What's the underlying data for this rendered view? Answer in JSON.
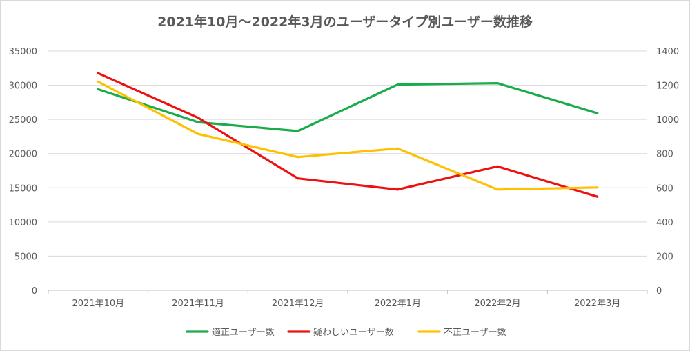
{
  "chart_data": {
    "type": "line",
    "title": "2021年10月～2022年3月のユーザータイプ別ユーザー数推移",
    "categories": [
      "2021年10月",
      "2021年11月",
      "2021年12月",
      "2022年1月",
      "2022年2月",
      "2022年3月"
    ],
    "series": [
      {
        "name": "適正ユーザー数",
        "axis": "left",
        "color": "#1aab4b",
        "values": [
          29400,
          24600,
          23300,
          30100,
          30300,
          25900
        ]
      },
      {
        "name": "疑わしいユーザー数",
        "axis": "right",
        "color": "#ee1111",
        "values": [
          1270,
          1010,
          655,
          590,
          725,
          548
        ]
      },
      {
        "name": "不正ユーザー数",
        "axis": "right",
        "color": "#ffc000",
        "values": [
          1220,
          915,
          780,
          830,
          590,
          602
        ]
      }
    ],
    "y_left": {
      "min": 0,
      "max": 35000,
      "ticks": [
        "0",
        "5000",
        "10000",
        "15000",
        "20000",
        "25000",
        "30000",
        "35000"
      ]
    },
    "y_right": {
      "min": 0,
      "max": 1400,
      "ticks": [
        "0",
        "200",
        "400",
        "600",
        "800",
        "1000",
        "1200",
        "1400"
      ]
    },
    "grid": true,
    "legend_position": "bottom"
  }
}
